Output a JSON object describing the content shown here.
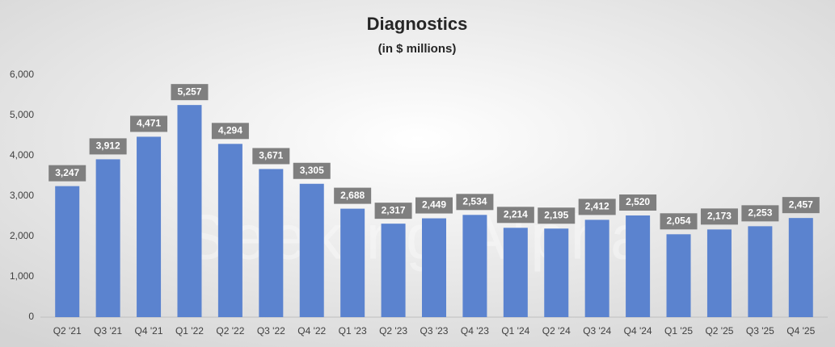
{
  "chart_data": {
    "type": "bar",
    "title": "Diagnostics",
    "subtitle": "(in $ millions)",
    "watermark": "Seeking Alpha",
    "categories": [
      "Q2 '21",
      "Q3 '21",
      "Q4 '21",
      "Q1 '22",
      "Q2 '22",
      "Q3 '22",
      "Q4 '22",
      "Q1 '23",
      "Q2 '23",
      "Q3 '23",
      "Q4 '23",
      "Q1 '24",
      "Q2 '24",
      "Q3 '24",
      "Q4 '24",
      "Q1 '25",
      "Q2 '25",
      "Q3 '25",
      "Q4 '25"
    ],
    "values": [
      3247,
      3912,
      4471,
      5257,
      4294,
      3671,
      3305,
      2688,
      2317,
      2449,
      2534,
      2214,
      2195,
      2412,
      2520,
      2054,
      2173,
      2253,
      2457
    ],
    "value_labels": [
      "3,247",
      "3,912",
      "4,471",
      "5,257",
      "4,294",
      "3,671",
      "3,305",
      "2,688",
      "2,317",
      "2,449",
      "2,534",
      "2,214",
      "2,195",
      "2,412",
      "2,520",
      "2,054",
      "2,173",
      "2,253",
      "2,457"
    ],
    "color": "#5b83cf",
    "ylim": [
      0,
      6000
    ],
    "yticks": [
      0,
      {
        "value": 1000,
        "label": "1,000"
      },
      {
        "value": 2000,
        "label": "2,000"
      },
      {
        "value": 3000,
        "label": "3,000"
      },
      {
        "value": 4000,
        "label": "4,000"
      },
      {
        "value": 5000,
        "label": "5,000"
      },
      {
        "value": 6000,
        "label": "6,000"
      }
    ],
    "grid": false
  }
}
